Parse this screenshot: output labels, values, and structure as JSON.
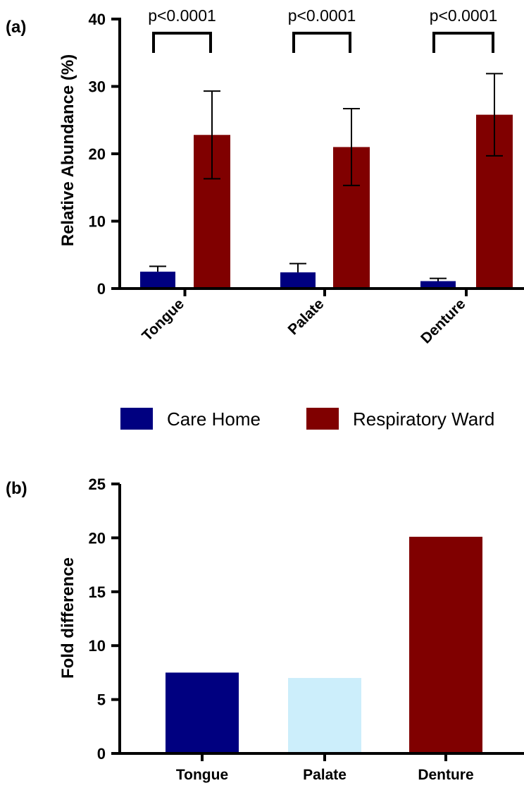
{
  "chart_data": [
    {
      "panel_label": "(a)",
      "type": "bar",
      "xlabel": "",
      "ylabel": "Relative Abundance (%)",
      "ylim": [
        0,
        40
      ],
      "yticks": [
        "0",
        "10",
        "20",
        "30",
        "40"
      ],
      "categories": [
        "Tongue",
        "Palate",
        "Denture"
      ],
      "series": [
        {
          "name": "Care Home",
          "color": "#000080",
          "values": [
            2.5,
            2.4,
            1.1
          ],
          "errors": [
            0.8,
            1.3,
            0.4
          ]
        },
        {
          "name": "Respiratory Ward",
          "color": "#800000",
          "values": [
            22.8,
            21.0,
            25.8
          ],
          "errors": [
            6.5,
            5.7,
            6.1
          ]
        }
      ],
      "annotations": [
        "p<0.0001",
        "p<0.0001",
        "p<0.0001"
      ],
      "legend": {
        "position": "bottom",
        "entries": [
          "Care Home",
          "Respiratory Ward"
        ]
      },
      "grid": false
    },
    {
      "panel_label": "(b)",
      "type": "bar",
      "xlabel": "",
      "ylabel": "Fold difference",
      "ylim": [
        0,
        25
      ],
      "yticks": [
        "0",
        "5",
        "10",
        "15",
        "20",
        "25"
      ],
      "categories": [
        "Tongue",
        "Palate",
        "Denture"
      ],
      "values": [
        7.5,
        7.0,
        20.1
      ],
      "colors": [
        "#000080",
        "#CCEEFB",
        "#800000"
      ],
      "grid": false
    }
  ]
}
